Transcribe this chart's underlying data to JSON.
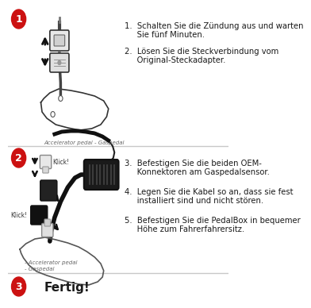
{
  "bg_color": "#ffffff",
  "separator_color": "#c8c8c8",
  "circle_color": "#cc1111",
  "circle_text_color": "#ffffff",
  "step1_num": "1",
  "step2_num": "2",
  "step3_num": "3",
  "text1a": "1.  Schalten Sie die Zündung aus und warten",
  "text1b": "     Sie fünf Minuten.",
  "text2a": "2.  Lösen Sie die Steckverbindung vom",
  "text2b": "     Original-Steckadapter.",
  "text3a": "3.  Befestigen Sie die beiden OEM-",
  "text3b": "     Konnektoren am Gaspedalsensor.",
  "text4a": "4.  Legen Sie die Kabel so an, dass sie fest",
  "text4b": "     installiert sind und nicht stören.",
  "text5a": "5.  Befestigen Sie die PedalBox in bequemer",
  "text5b": "     Höhe zum Fahrerfahrersitz.",
  "step3_text": "Fertig!",
  "caption1": "Accelerator pedal - Gaspedal",
  "caption2a": "- Accelerator pedal",
  "caption2b": "- Gaspedal",
  "font_size_main": 7.2,
  "font_size_caption": 5.0,
  "font_size_fertig": 11,
  "dark_color": "#1a1a1a",
  "mid_color": "#555555",
  "light_gray": "#cccccc",
  "dark_gray": "#333333"
}
